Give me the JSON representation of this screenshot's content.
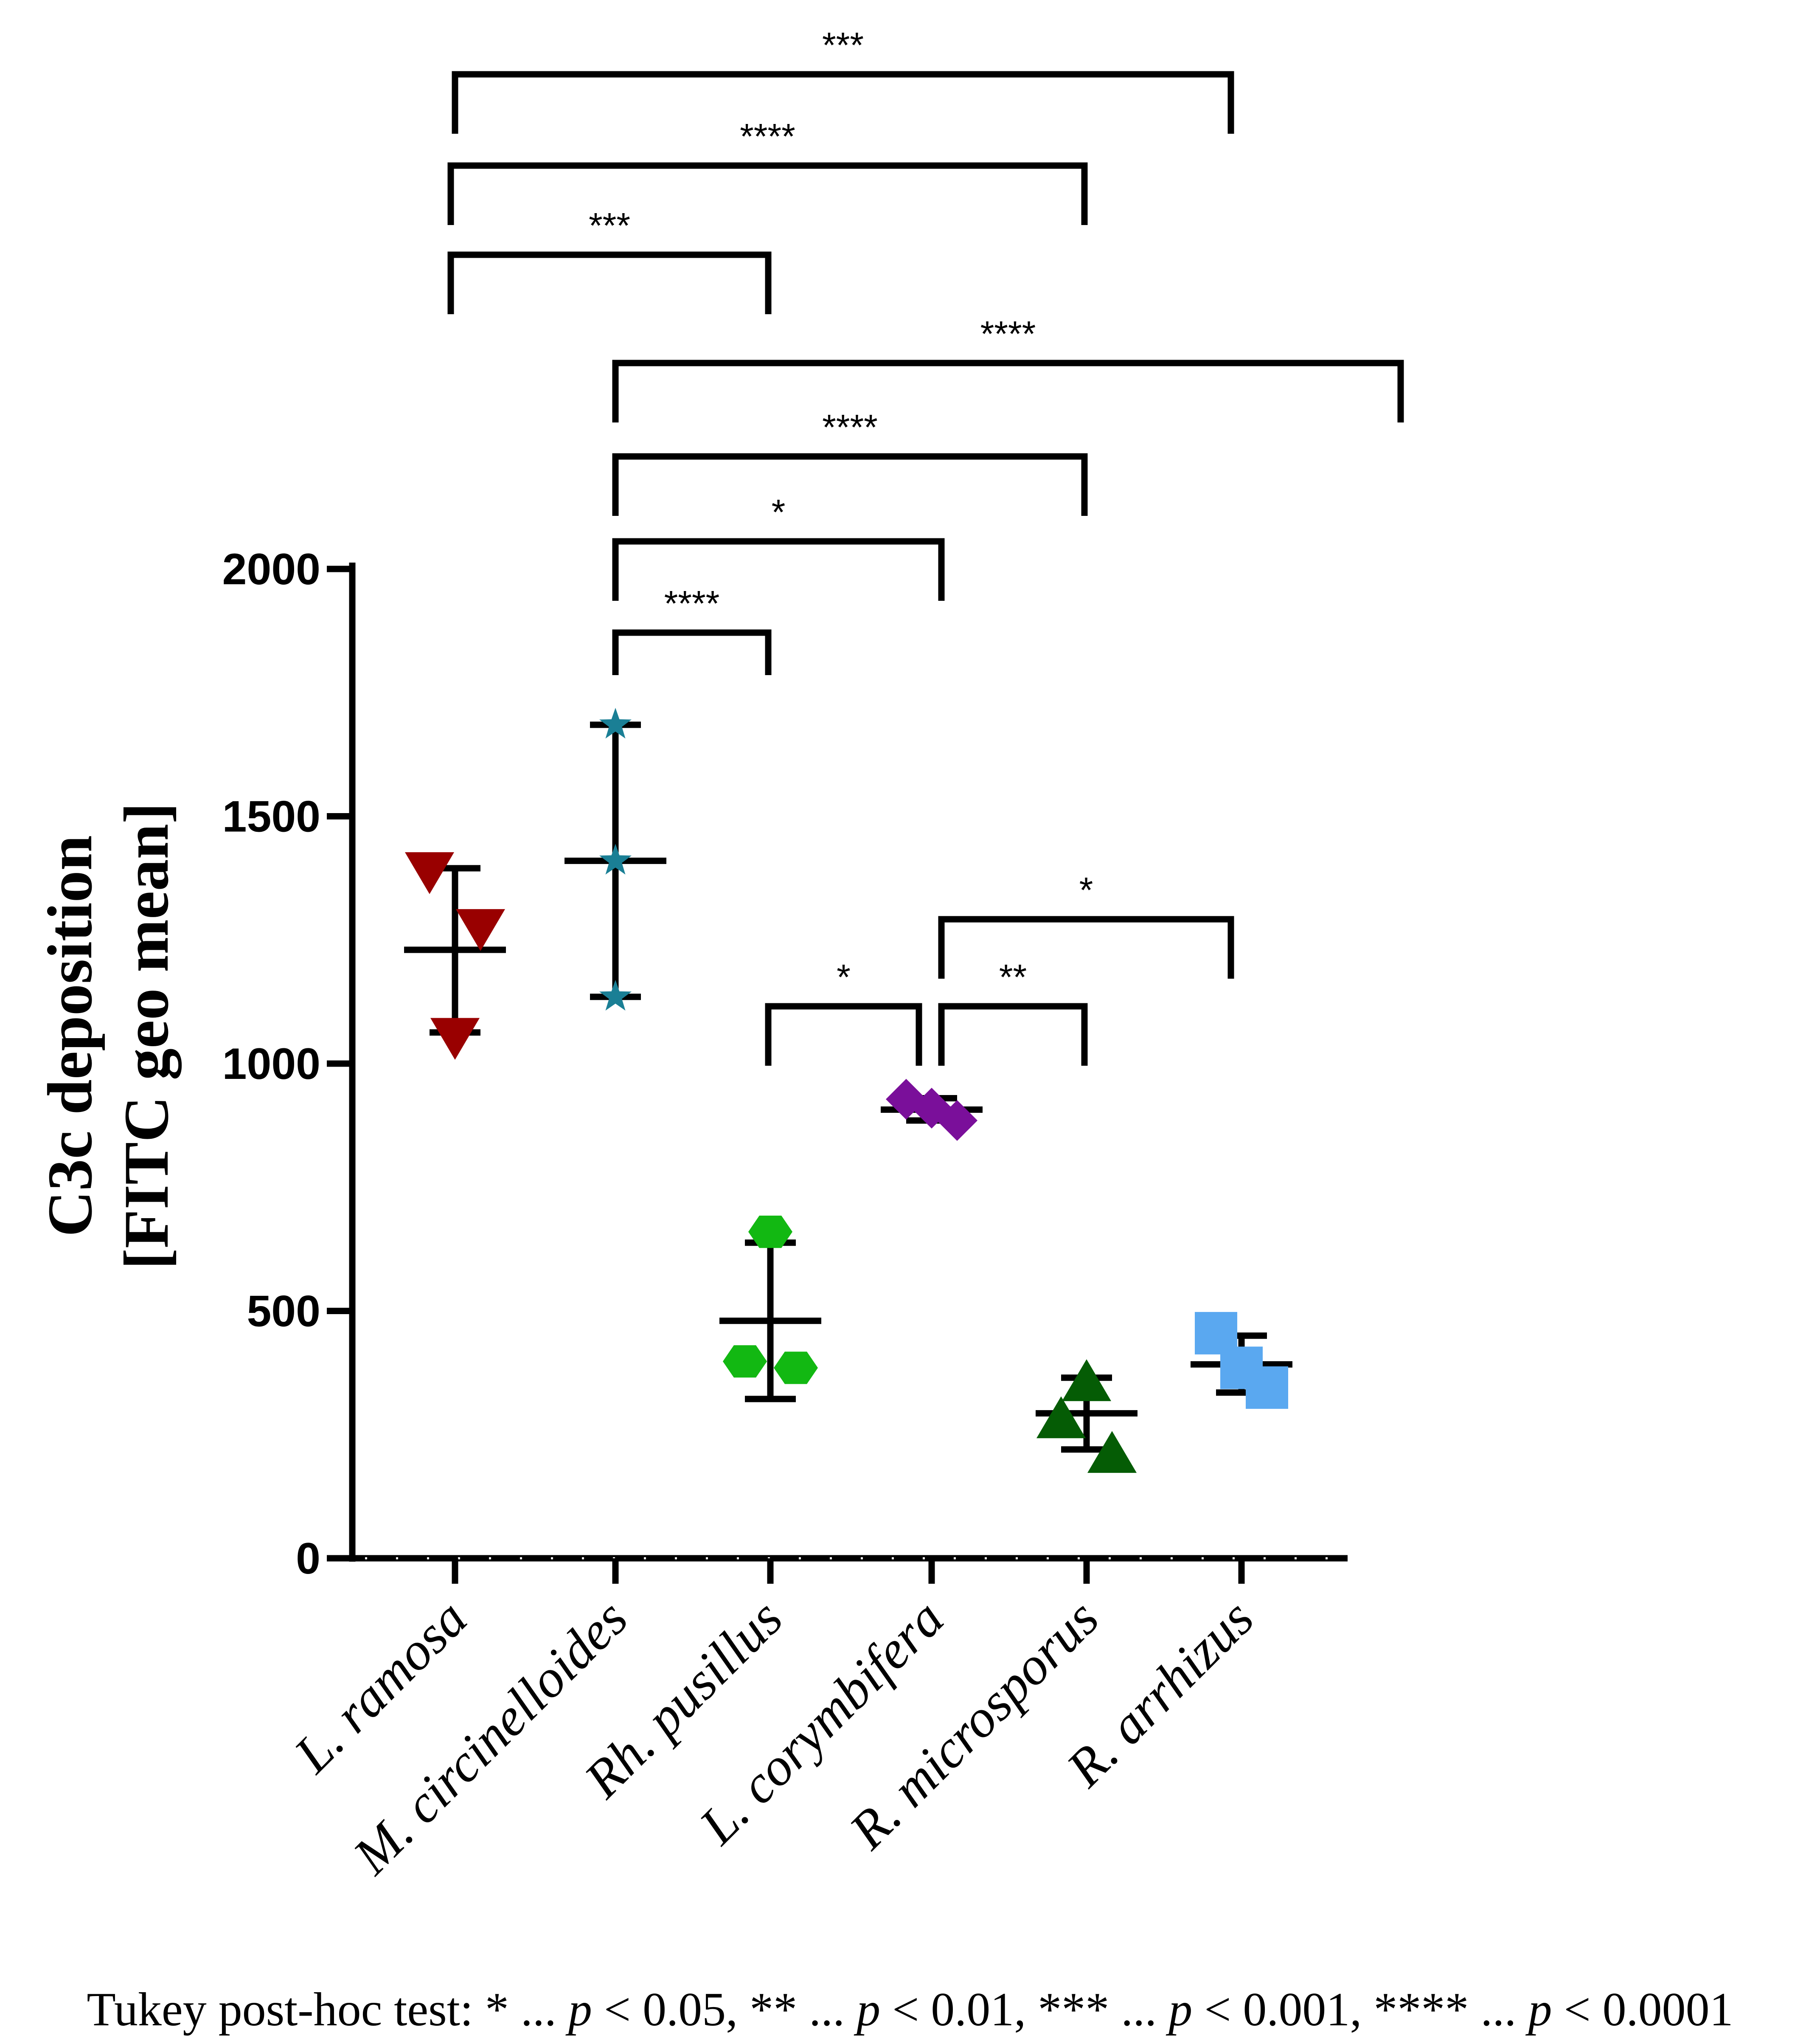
{
  "chart_data": {
    "type": "scatter",
    "ylabel_line1": "C3c deposition",
    "ylabel_line2": "[FITC geo mean]",
    "ylim": [
      0,
      2000
    ],
    "yticks": [
      "0",
      "500",
      "1000",
      "1500",
      "2000"
    ],
    "categories": [
      "L. ramosa",
      "M. circinelloides",
      "Rh. pusillus",
      "L. corymbifera",
      "R. microsporus",
      "R. arrhizus"
    ],
    "series": [
      {
        "category": "L. ramosa",
        "marker": "triangle-down",
        "color": "#990000",
        "points": [
          1385,
          1270,
          1050
        ],
        "mean": 1230,
        "sd_upper": 1395,
        "sd_lower": 1063
      },
      {
        "category": "M. circinelloides",
        "marker": "star",
        "color": "#1a7f95",
        "points": [
          1685,
          1410,
          1135
        ],
        "mean": 1410,
        "sd_upper": 1685,
        "sd_lower": 1135
      },
      {
        "category": "Rh. pusillus",
        "marker": "hexagon",
        "color": "#12b812",
        "points": [
          660,
          398,
          385
        ],
        "mean": 480,
        "sd_upper": 638,
        "sd_lower": 322
      },
      {
        "category": "L. corymbifera",
        "marker": "diamond",
        "color": "#7a0f9a",
        "points": [
          928,
          910,
          885
        ],
        "mean": 907,
        "sd_upper": 930,
        "sd_lower": 885
      },
      {
        "category": "R. microsporus",
        "marker": "triangle-up",
        "color": "#055c05",
        "points": [
          360,
          285,
          215
        ],
        "mean": 293,
        "sd_upper": 365,
        "sd_lower": 220
      },
      {
        "category": "R. arrhizus",
        "marker": "square",
        "color": "#5aa8f0",
        "points": [
          455,
          385,
          345
        ],
        "mean": 392,
        "sd_upper": 450,
        "sd_lower": 335
      }
    ],
    "significance": [
      {
        "from": 0,
        "to": 5,
        "label": "***"
      },
      {
        "from": 0,
        "to": 4,
        "label": "****"
      },
      {
        "from": 0,
        "to": 2,
        "label": "***"
      },
      {
        "from": 1,
        "to": 5,
        "label": "****"
      },
      {
        "from": 1,
        "to": 4,
        "label": "****"
      },
      {
        "from": 1,
        "to": 3,
        "label": "*"
      },
      {
        "from": 1,
        "to": 2,
        "label": "****"
      },
      {
        "from": 3,
        "to": 5,
        "label": "*"
      },
      {
        "from": 2,
        "to": 3,
        "label": "*"
      },
      {
        "from": 3,
        "to": 4,
        "label": "**"
      }
    ]
  },
  "footnote": {
    "prefix": "Tukey post-hoc test: * ... ",
    "p": "p",
    "t1": " < 0.05, ** ... ",
    "t2": " < 0.01, *** ... ",
    "t3": " < 0.001, **** ... ",
    "t4": " < 0.0001"
  }
}
